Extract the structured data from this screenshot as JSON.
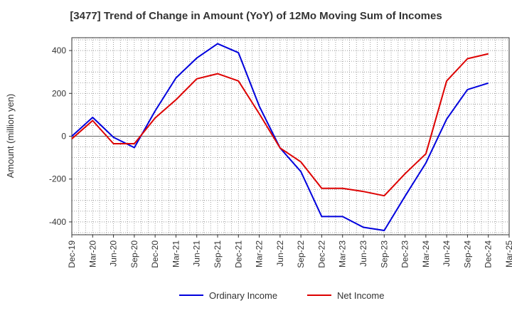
{
  "chart_data": {
    "type": "line",
    "title": "[3477]  Trend of Change in Amount (YoY) of 12Mo Moving Sum of Incomes",
    "xlabel": "",
    "ylabel": "Amount (million yen)",
    "categories": [
      "Dec-19",
      "Mar-20",
      "Jun-20",
      "Sep-20",
      "Dec-20",
      "Mar-21",
      "Jun-21",
      "Sep-21",
      "Dec-21",
      "Mar-22",
      "Jun-22",
      "Sep-22",
      "Dec-22",
      "Mar-23",
      "Jun-23",
      "Sep-23",
      "Dec-23",
      "Mar-24",
      "Jun-24",
      "Sep-24",
      "Dec-24",
      "Mar-25"
    ],
    "ylim": [
      -460,
      460
    ],
    "yticks": [
      400,
      200,
      0,
      -200,
      -400
    ],
    "grid": true,
    "legend_position": "bottom",
    "series": [
      {
        "name": "Ordinary Income",
        "color": "#0000dd",
        "values": [
          0,
          88,
          -5,
          -53,
          118,
          272,
          365,
          432,
          390,
          140,
          -55,
          -165,
          -375,
          -375,
          -425,
          -440,
          -280,
          -125,
          80,
          218,
          248,
          null
        ]
      },
      {
        "name": "Net Income",
        "color": "#dd0000",
        "values": [
          -12,
          73,
          -35,
          -35,
          85,
          170,
          268,
          292,
          258,
          105,
          -55,
          -120,
          -243,
          -243,
          -258,
          -278,
          -175,
          -82,
          258,
          362,
          385,
          null
        ]
      }
    ]
  }
}
